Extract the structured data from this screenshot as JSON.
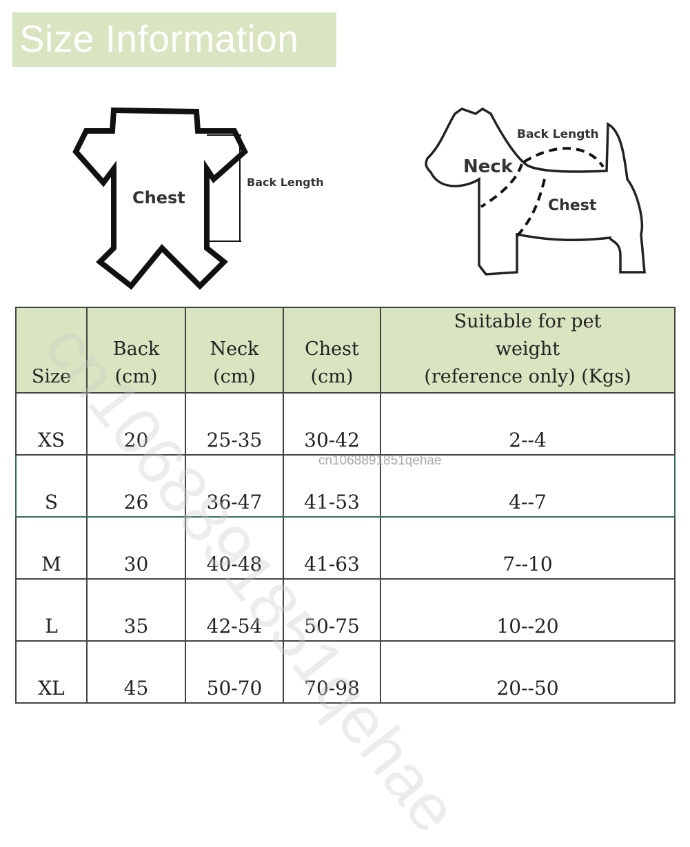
{
  "title": "Size Information",
  "diagrams": {
    "garment": {
      "chest_label": "Chest",
      "back_length_label": "Back Length"
    },
    "dog": {
      "neck_label": "Neck",
      "back_length_label": "Back Length",
      "chest_label": "Chest"
    }
  },
  "table": {
    "headers": [
      {
        "lines": [
          "Size"
        ]
      },
      {
        "lines": [
          "Back",
          "(cm)"
        ]
      },
      {
        "lines": [
          "Neck",
          "(cm)"
        ]
      },
      {
        "lines": [
          "Chest",
          "(cm)"
        ]
      },
      {
        "lines": [
          "Suitable for pet",
          "weight",
          "(reference only) (Kgs)"
        ]
      }
    ],
    "rows": [
      [
        "XS",
        "20",
        "25-35",
        "30-42",
        "2--4"
      ],
      [
        "S",
        "26",
        "36-47",
        "41-53",
        "4--7"
      ],
      [
        "M",
        "30",
        "40-48",
        "41-63",
        "7--10"
      ],
      [
        "L",
        "35",
        "42-54",
        "50-75",
        "10--20"
      ],
      [
        "XL",
        "45",
        "50-70",
        "70-98",
        "20--50"
      ]
    ]
  },
  "watermark": "cn1068891851qehae",
  "colors": {
    "header_bg": "#d9e5c0",
    "banner_bg": "#d9e5c0"
  }
}
